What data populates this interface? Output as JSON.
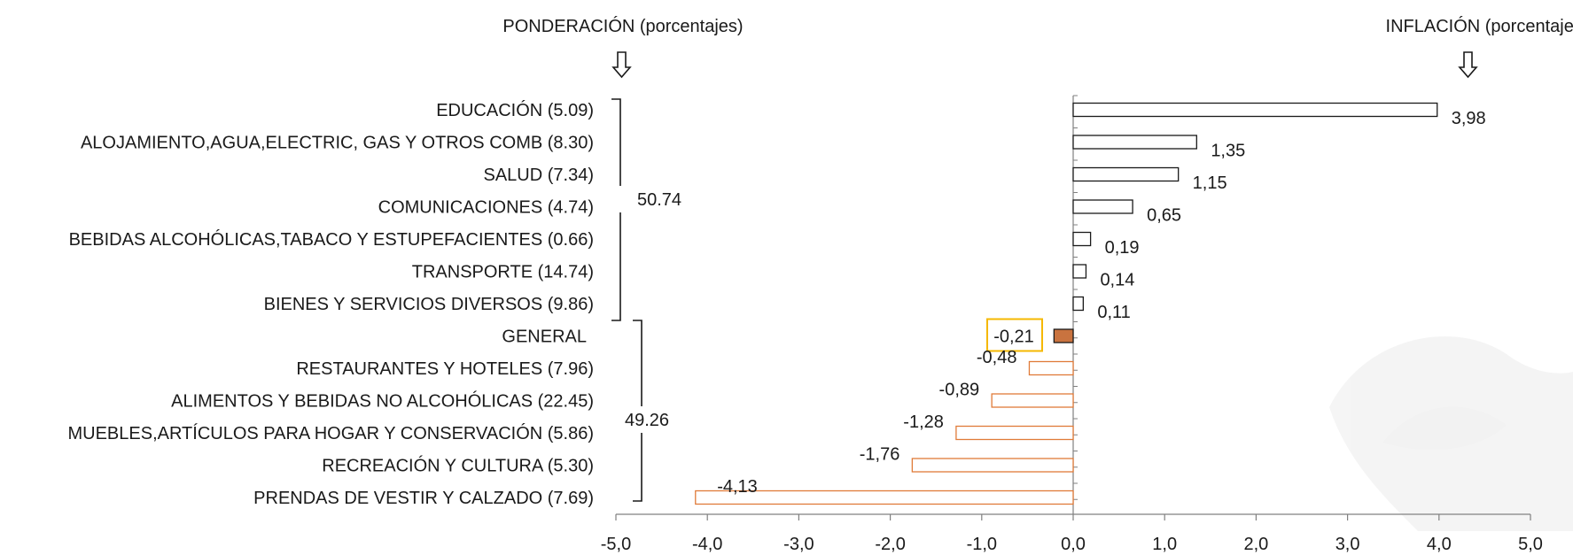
{
  "chart_data": {
    "type": "bar",
    "orientation": "horizontal",
    "header_left": "PONDERACIÓN (porcentajes)",
    "header_right": "INFLACIÓN (porcentajes)",
    "xlim": [
      -5.0,
      5.0
    ],
    "x_ticks": [
      "-5,0",
      "-4,0",
      "-3,0",
      "-2,0",
      "-1,0",
      "0,0",
      "1,0",
      "2,0",
      "3,0",
      "4,0",
      "5,0"
    ],
    "categories": [
      "EDUCACIÓN (5.09)",
      "ALOJAMIENTO,AGUA,ELECTRIC, GAS Y OTROS COMB (8.30)",
      "SALUD (7.34)",
      "COMUNICACIONES (4.74)",
      "BEBIDAS ALCOHÓLICAS,TABACO Y ESTUPEFACIENTES (0.66)",
      "TRANSPORTE (14.74)",
      "BIENES Y SERVICIOS DIVERSOS (9.86)",
      "GENERAL",
      "RESTAURANTES Y HOTELES (7.96)",
      "ALIMENTOS Y BEBIDAS NO ALCOHÓLICAS (22.45)",
      "MUEBLES,ARTÍCULOS PARA HOGAR Y CONSERVACIÓN (5.86)",
      "RECREACIÓN Y CULTURA (5.30)",
      "PRENDAS DE VESTIR Y CALZADO (7.69)"
    ],
    "values": [
      3.98,
      1.35,
      1.15,
      0.65,
      0.19,
      0.14,
      0.11,
      -0.21,
      -0.48,
      -0.89,
      -1.28,
      -1.76,
      -4.13
    ],
    "value_labels": [
      "3,98",
      "1,35",
      "1,15",
      "0,65",
      "0,19",
      "0,14",
      "0,11",
      "-0,21",
      "-0,48",
      "-0,89",
      "-1,28",
      "-1,76",
      "-4,13"
    ],
    "highlight_category": "GENERAL",
    "groups": [
      {
        "label": "50.74",
        "from": 0,
        "to": 6
      },
      {
        "label": "49.26",
        "from": 7,
        "to": 12
      }
    ],
    "colors": {
      "positive_stroke": "#1a1a1a",
      "negative_stroke": "#e07b39",
      "highlight_fill": "#c9733f",
      "highlight_box": "#f5b800",
      "axis": "#808080"
    },
    "grid": false,
    "legend": "none"
  }
}
